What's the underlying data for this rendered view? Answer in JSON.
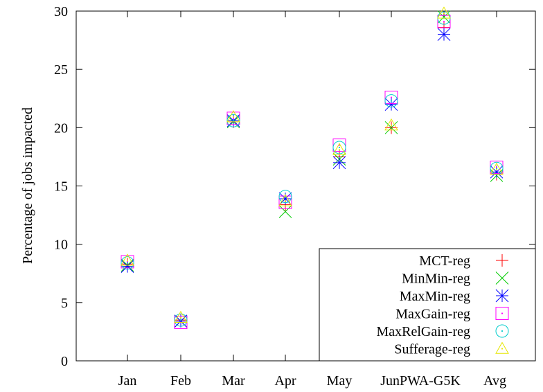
{
  "chart_data": {
    "type": "scatter",
    "title": "",
    "xlabel": "",
    "ylabel": "Percentage of jobs impacted",
    "categories": [
      "Jan",
      "Feb",
      "Mar",
      "Apr",
      "May",
      "Jun",
      "PWA-G5K",
      "Avg"
    ],
    "ylim": [
      0,
      30
    ],
    "yticks": [
      0,
      5,
      10,
      15,
      20,
      25,
      30
    ],
    "grid": false,
    "legend_position": "bottom-right",
    "series": [
      {
        "name": "MCT-reg",
        "color": "#ff0000",
        "marker": "plus",
        "values": [
          8.3,
          3.5,
          20.5,
          13.4,
          17.5,
          20.0,
          28.6,
          16.0
        ]
      },
      {
        "name": "MinMin-reg",
        "color": "#00cc00",
        "marker": "cross",
        "values": [
          8.2,
          3.4,
          20.5,
          12.8,
          17.3,
          20.0,
          29.5,
          15.9
        ]
      },
      {
        "name": "MaxMin-reg",
        "color": "#0000ff",
        "marker": "star",
        "values": [
          8.1,
          3.4,
          20.6,
          13.9,
          17.0,
          22.0,
          28.0,
          16.2
        ]
      },
      {
        "name": "MaxGain-reg",
        "color": "#ff00ff",
        "marker": "square",
        "values": [
          8.5,
          3.3,
          20.8,
          13.6,
          18.5,
          22.6,
          29.1,
          16.6
        ]
      },
      {
        "name": "MaxRelGain-reg",
        "color": "#00cccc",
        "marker": "circle",
        "values": [
          8.4,
          3.5,
          20.6,
          14.1,
          18.3,
          22.3,
          29.4,
          16.5
        ]
      },
      {
        "name": "Sufferage-reg",
        "color": "#e6e600",
        "marker": "triangle",
        "values": [
          8.6,
          3.7,
          20.9,
          13.7,
          18.1,
          20.2,
          29.8,
          16.4
        ]
      }
    ]
  }
}
